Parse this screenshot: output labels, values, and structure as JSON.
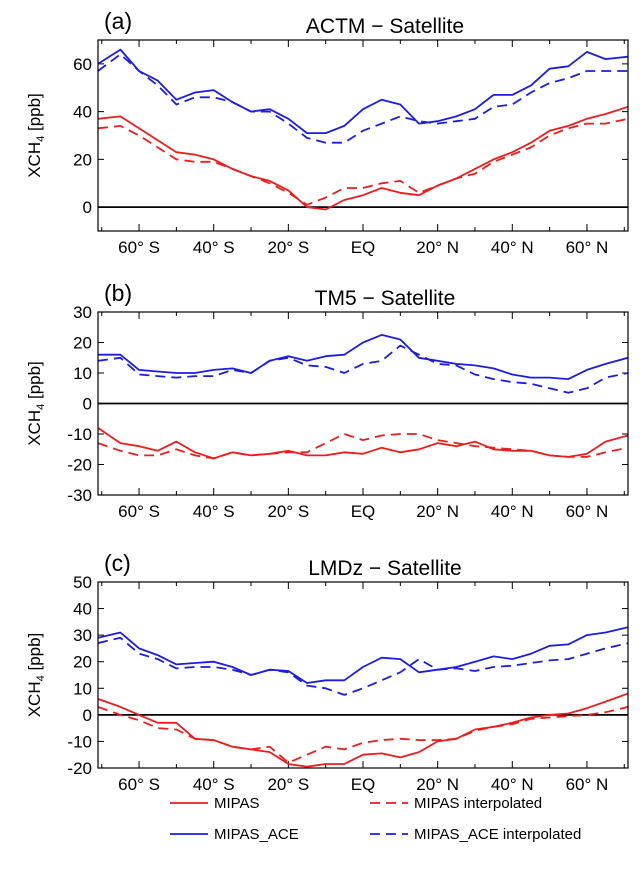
{
  "chart_data": [
    {
      "type": "line",
      "panel_label": "(a)",
      "title": "ACTM − Satellite",
      "ylabel_main": "XCH",
      "ylabel_sub": "4",
      "ylabel_unit": " [ppb]",
      "ylim": [
        -10,
        70
      ],
      "yticks": [
        0,
        20,
        40,
        60
      ],
      "ytick_labels": [
        "0",
        "20",
        "40",
        "60"
      ],
      "xlim": [
        -71,
        71
      ],
      "x_ticks": [
        -60,
        -40,
        -20,
        0,
        20,
        40,
        60
      ],
      "x_tick_labels": [
        "60° S",
        "40° S",
        "20° S",
        "EQ",
        "20° N",
        "40° N",
        "60° N"
      ],
      "series": [
        {
          "name": "MIPAS",
          "color": "#ee1c1c",
          "dash": false,
          "x": [
            -71,
            -65,
            -60,
            -55,
            -50,
            -45,
            -40,
            -35,
            -30,
            -25,
            -20,
            -15,
            -10,
            -5,
            0,
            5,
            10,
            15,
            20,
            25,
            30,
            35,
            40,
            45,
            50,
            55,
            60,
            65,
            71
          ],
          "y": [
            37,
            38,
            33,
            28,
            23,
            22,
            20,
            16,
            13,
            11,
            7,
            0,
            -1,
            3,
            5,
            8,
            6,
            5,
            9,
            12,
            16,
            20,
            23,
            27,
            32,
            34,
            37,
            39,
            42
          ]
        },
        {
          "name": "MIPAS interpolated",
          "color": "#ee1c1c",
          "dash": true,
          "x": [
            -71,
            -65,
            -60,
            -55,
            -50,
            -45,
            -40,
            -35,
            -30,
            -25,
            -20,
            -15,
            -10,
            -5,
            0,
            5,
            10,
            15,
            20,
            25,
            30,
            35,
            40,
            45,
            50,
            55,
            60,
            65,
            71
          ],
          "y": [
            33,
            34,
            30,
            25,
            20,
            19,
            19,
            16,
            13,
            10,
            6,
            1,
            4,
            8,
            8,
            10,
            11,
            6,
            9,
            12,
            14,
            19,
            22,
            25,
            30,
            33,
            35,
            35,
            37
          ]
        },
        {
          "name": "MIPAS_ACE",
          "color": "#1c1ce6",
          "dash": false,
          "x": [
            -71,
            -65,
            -60,
            -55,
            -50,
            -45,
            -40,
            -35,
            -30,
            -25,
            -20,
            -15,
            -10,
            -5,
            0,
            5,
            10,
            15,
            20,
            25,
            30,
            35,
            40,
            45,
            50,
            55,
            60,
            65,
            71
          ],
          "y": [
            60,
            66,
            57,
            53,
            45,
            48,
            49,
            44,
            40,
            41,
            37,
            31,
            31,
            34,
            41,
            45,
            43,
            35,
            36,
            38,
            41,
            47,
            47,
            51,
            58,
            59,
            65,
            62,
            63
          ]
        },
        {
          "name": "MIPAS_ACE interpolated",
          "color": "#1c1ce6",
          "dash": true,
          "x": [
            -71,
            -65,
            -60,
            -55,
            -50,
            -45,
            -40,
            -35,
            -30,
            -25,
            -20,
            -15,
            -10,
            -5,
            0,
            5,
            10,
            15,
            20,
            25,
            30,
            35,
            40,
            45,
            50,
            55,
            60,
            65,
            71
          ],
          "y": [
            57,
            64,
            57,
            51,
            43,
            46,
            46,
            44,
            40,
            40,
            35,
            29,
            27,
            27,
            32,
            35,
            38,
            36,
            35,
            36,
            37,
            42,
            43,
            48,
            52,
            54,
            57,
            57,
            57
          ]
        }
      ]
    },
    {
      "type": "line",
      "panel_label": "(b)",
      "title": "TM5 − Satellite",
      "ylabel_main": "XCH",
      "ylabel_sub": "4",
      "ylabel_unit": " [ppb]",
      "ylim": [
        -30,
        30
      ],
      "yticks": [
        -30,
        -20,
        -10,
        0,
        10,
        20,
        30
      ],
      "ytick_labels": [
        "-30",
        "-20",
        "-10",
        "0",
        "10",
        "20",
        "30"
      ],
      "xlim": [
        -71,
        71
      ],
      "x_ticks": [
        -60,
        -40,
        -20,
        0,
        20,
        40,
        60
      ],
      "x_tick_labels": [
        "60° S",
        "40° S",
        "20° S",
        "EQ",
        "20° N",
        "40° N",
        "60° N"
      ],
      "series": [
        {
          "name": "MIPAS",
          "color": "#ee1c1c",
          "dash": false,
          "x": [
            -71,
            -65,
            -60,
            -55,
            -50,
            -45,
            -40,
            -35,
            -30,
            -25,
            -20,
            -15,
            -10,
            -5,
            0,
            5,
            10,
            15,
            20,
            25,
            30,
            35,
            40,
            45,
            50,
            55,
            60,
            65,
            71
          ],
          "y": [
            -8,
            -13,
            -14,
            -15.5,
            -12.5,
            -16,
            -18,
            -16,
            -17,
            -16.5,
            -15.5,
            -17,
            -17,
            -16,
            -16.5,
            -14.5,
            -16,
            -15,
            -13,
            -14,
            -12.5,
            -15,
            -15.5,
            -15.5,
            -17,
            -17.5,
            -16.5,
            -12.5,
            -10.5
          ]
        },
        {
          "name": "MIPAS interpolated",
          "color": "#ee1c1c",
          "dash": true,
          "x": [
            -71,
            -65,
            -60,
            -55,
            -50,
            -45,
            -40,
            -35,
            -30,
            -25,
            -20,
            -15,
            -10,
            -5,
            0,
            5,
            10,
            15,
            20,
            25,
            30,
            35,
            40,
            45,
            50,
            55,
            60,
            65,
            71
          ],
          "y": [
            -13,
            -15.5,
            -17,
            -17,
            -15,
            -17,
            -18,
            -16,
            -17,
            -16.5,
            -16,
            -16,
            -13,
            -10,
            -12,
            -10.5,
            -10,
            -10,
            -12,
            -13,
            -14,
            -14.5,
            -15,
            -15.5,
            -17,
            -17.5,
            -17.5,
            -16,
            -14.5
          ]
        },
        {
          "name": "MIPAS_ACE",
          "color": "#1c1ce6",
          "dash": false,
          "x": [
            -71,
            -65,
            -60,
            -55,
            -50,
            -45,
            -40,
            -35,
            -30,
            -25,
            -20,
            -15,
            -10,
            -5,
            0,
            5,
            10,
            15,
            20,
            25,
            30,
            35,
            40,
            45,
            50,
            55,
            60,
            65,
            71
          ],
          "y": [
            16,
            16,
            11,
            10.5,
            10,
            10,
            11,
            11.5,
            10,
            14,
            15.5,
            14,
            15.5,
            16,
            20,
            22.5,
            21,
            15,
            14,
            13,
            12.5,
            11.5,
            9.5,
            8.5,
            8.5,
            8,
            11,
            13,
            15
          ]
        },
        {
          "name": "MIPAS_ACE interpolated",
          "color": "#1c1ce6",
          "dash": true,
          "x": [
            -71,
            -65,
            -60,
            -55,
            -50,
            -45,
            -40,
            -35,
            -30,
            -25,
            -20,
            -15,
            -10,
            -5,
            0,
            5,
            10,
            15,
            20,
            25,
            30,
            35,
            40,
            45,
            50,
            55,
            60,
            65,
            71
          ],
          "y": [
            14,
            15,
            9.5,
            9,
            8.5,
            9,
            9,
            11,
            10,
            14,
            15,
            12.5,
            12,
            10,
            13,
            14,
            19,
            16,
            13,
            12.5,
            9.5,
            8,
            7,
            6.5,
            5,
            3.5,
            5,
            8.5,
            10
          ]
        }
      ]
    },
    {
      "type": "line",
      "panel_label": "(c)",
      "title": "LMDz − Satellite",
      "ylabel_main": "XCH",
      "ylabel_sub": "4",
      "ylabel_unit": " [ppb]",
      "ylim": [
        -20,
        50
      ],
      "yticks": [
        -20,
        -10,
        0,
        10,
        20,
        30,
        40,
        50
      ],
      "ytick_labels": [
        "-20",
        "-10",
        "0",
        "10",
        "20",
        "30",
        "40",
        "50"
      ],
      "xlim": [
        -71,
        71
      ],
      "x_ticks": [
        -60,
        -40,
        -20,
        0,
        20,
        40,
        60
      ],
      "x_tick_labels": [
        "60° S",
        "40° S",
        "20° S",
        "EQ",
        "20° N",
        "40° N",
        "60° N"
      ],
      "series": [
        {
          "name": "MIPAS",
          "color": "#ee1c1c",
          "dash": false,
          "x": [
            -71,
            -65,
            -60,
            -55,
            -50,
            -45,
            -40,
            -35,
            -30,
            -25,
            -20,
            -15,
            -10,
            -5,
            0,
            5,
            10,
            15,
            20,
            25,
            30,
            35,
            40,
            45,
            50,
            55,
            60,
            65,
            71
          ],
          "y": [
            6,
            3,
            0,
            -3,
            -3,
            -9,
            -9.5,
            -12,
            -13,
            -14,
            -18.5,
            -19.5,
            -18.5,
            -18.5,
            -15,
            -14.5,
            -16,
            -14,
            -10,
            -9,
            -5.5,
            -4.5,
            -3,
            -1,
            0,
            0.5,
            2.5,
            5,
            8
          ]
        },
        {
          "name": "MIPAS interpolated",
          "color": "#ee1c1c",
          "dash": true,
          "x": [
            -71,
            -65,
            -60,
            -55,
            -50,
            -45,
            -40,
            -35,
            -30,
            -25,
            -20,
            -15,
            -10,
            -5,
            0,
            5,
            10,
            15,
            20,
            25,
            30,
            35,
            40,
            45,
            50,
            55,
            60,
            65,
            71
          ],
          "y": [
            3,
            0,
            -2,
            -5,
            -5.5,
            -9,
            -9.5,
            -12,
            -13,
            -12,
            -18,
            -15,
            -12,
            -13,
            -10.5,
            -9.5,
            -9,
            -9.5,
            -9.5,
            -9,
            -6,
            -4.5,
            -3.5,
            -1.5,
            -1,
            -0.5,
            0,
            1,
            3
          ]
        },
        {
          "name": "MIPAS_ACE",
          "color": "#1c1ce6",
          "dash": false,
          "x": [
            -71,
            -65,
            -60,
            -55,
            -50,
            -45,
            -40,
            -35,
            -30,
            -25,
            -20,
            -15,
            -10,
            -5,
            0,
            5,
            10,
            15,
            20,
            25,
            30,
            35,
            40,
            45,
            50,
            55,
            60,
            65,
            71
          ],
          "y": [
            29,
            31,
            25,
            22.5,
            19,
            19.5,
            20,
            18,
            15,
            17,
            16.5,
            12,
            13,
            13,
            18,
            21.5,
            21,
            16,
            17,
            18,
            20,
            22,
            21,
            23,
            26,
            26.5,
            30,
            31,
            33
          ]
        },
        {
          "name": "MIPAS_ACE interpolated",
          "color": "#1c1ce6",
          "dash": true,
          "x": [
            -71,
            -65,
            -60,
            -55,
            -50,
            -45,
            -40,
            -35,
            -30,
            -25,
            -20,
            -15,
            -10,
            -5,
            0,
            5,
            10,
            15,
            20,
            25,
            30,
            35,
            40,
            45,
            50,
            55,
            60,
            65,
            71
          ],
          "y": [
            27,
            29,
            23,
            21,
            17.5,
            18,
            18,
            17,
            15,
            17,
            16,
            11,
            10,
            7.5,
            10,
            13,
            16,
            21,
            17,
            17.5,
            16.5,
            18,
            18.5,
            19.5,
            20.5,
            21,
            23,
            25,
            27
          ]
        }
      ]
    }
  ],
  "legend": [
    {
      "label": "MIPAS",
      "color": "#ee1c1c",
      "dash": false
    },
    {
      "label": "MIPAS interpolated",
      "color": "#ee1c1c",
      "dash": true
    },
    {
      "label": "MIPAS_ACE",
      "color": "#1c1ce6",
      "dash": false
    },
    {
      "label": "MIPAS_ACE interpolated",
      "color": "#1c1ce6",
      "dash": true
    }
  ]
}
